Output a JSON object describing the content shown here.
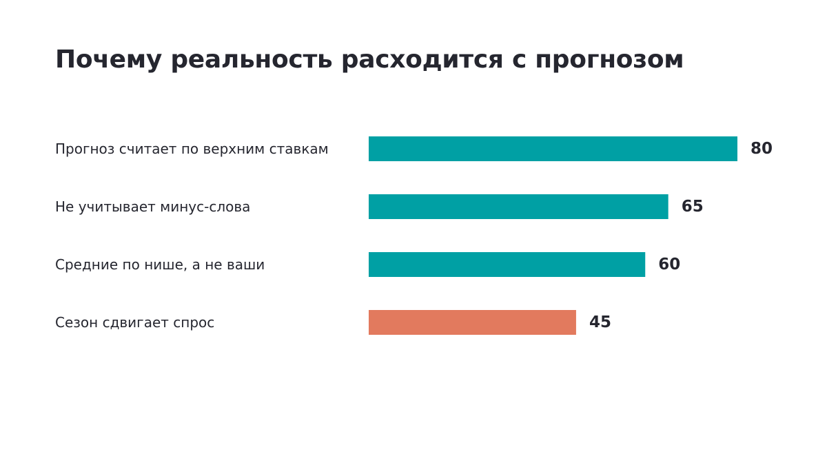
{
  "title": "Почему реальность расходится с прогнозом",
  "colors": {
    "primary": "#00a0a4",
    "highlight": "#e27a5e",
    "text": "#25262f",
    "background": "#ffffff"
  },
  "chart_data": {
    "type": "bar",
    "orientation": "horizontal",
    "categories": [
      "Прогноз считает по верхним ставкам",
      "Не учитывает минус-слова",
      "Средние по нише, а не ваши",
      "Сезон сдвигает спрос"
    ],
    "values": [
      80,
      65,
      60,
      45
    ],
    "value_labels": [
      "80",
      "65",
      "60",
      "45"
    ],
    "bar_colors": [
      "#00a0a4",
      "#00a0a4",
      "#00a0a4",
      "#e27a5e"
    ],
    "highlighted_category": "Сезон сдвигает спрос",
    "axis_visible": false,
    "grid": false,
    "legend": "none"
  }
}
